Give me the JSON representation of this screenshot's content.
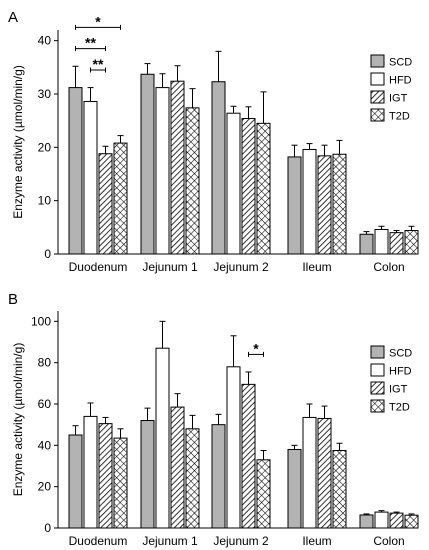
{
  "chart_data": [
    {
      "type": "bar",
      "panel_label": "A",
      "ylabel": "Enzyme activity (µmol/min/g)",
      "ylim": [
        0,
        42
      ],
      "yticks": [
        0,
        10,
        20,
        30,
        40
      ],
      "categories": [
        "Duodenum",
        "Jejunum 1",
        "Jejunum 2",
        "Ileum",
        "Colon"
      ],
      "series": [
        {
          "name": "SCD",
          "values": [
            31.2,
            33.7,
            32.3,
            18.2,
            3.7
          ],
          "errors": [
            4.0,
            2.0,
            5.7,
            2.2,
            0.5
          ]
        },
        {
          "name": "HFD",
          "values": [
            28.6,
            31.2,
            26.4,
            19.6,
            4.6
          ],
          "errors": [
            2.6,
            2.6,
            1.3,
            1.1,
            0.6
          ]
        },
        {
          "name": "IGT",
          "values": [
            18.8,
            32.4,
            25.4,
            18.4,
            4.0
          ],
          "errors": [
            1.4,
            2.9,
            2.2,
            2.0,
            0.4
          ]
        },
        {
          "name": "T2D",
          "values": [
            20.8,
            27.4,
            24.5,
            18.7,
            4.4
          ],
          "errors": [
            1.4,
            3.6,
            5.9,
            2.6,
            0.8
          ]
        }
      ],
      "annotations": [
        {
          "text": "*",
          "category": "Duodenum",
          "from": "SCD",
          "to": "T2D",
          "level": 42.5
        },
        {
          "text": "**",
          "category": "Duodenum",
          "from": "SCD",
          "to": "IGT",
          "level": 38.5
        },
        {
          "text": "**",
          "category": "Duodenum",
          "from": "HFD",
          "to": "IGT",
          "level": 34.5
        }
      ],
      "legend": "top-right"
    },
    {
      "type": "bar",
      "panel_label": "B",
      "ylabel": "Enzyme activity (µmol/min/g)",
      "ylim": [
        0,
        105
      ],
      "yticks": [
        0,
        20,
        40,
        60,
        80,
        100
      ],
      "categories": [
        "Duodenum",
        "Jejunum 1",
        "Jejunum 2",
        "Ileum",
        "Colon"
      ],
      "series": [
        {
          "name": "SCD",
          "values": [
            45,
            52,
            50,
            38,
            6.3
          ],
          "errors": [
            4.5,
            6,
            5,
            2,
            0.5
          ]
        },
        {
          "name": "HFD",
          "values": [
            54,
            87,
            78,
            53.5,
            7.7
          ],
          "errors": [
            6.5,
            13,
            15,
            6.5,
            0.7
          ]
        },
        {
          "name": "IGT",
          "values": [
            50.5,
            58.5,
            69.5,
            53,
            7.2
          ],
          "errors": [
            3,
            6.5,
            6,
            6,
            0.5
          ]
        },
        {
          "name": "T2D",
          "values": [
            43.5,
            48,
            33,
            37.5,
            6.2
          ],
          "errors": [
            4.5,
            6.5,
            4.5,
            3.5,
            0.6
          ]
        }
      ],
      "annotations": [
        {
          "text": "*",
          "category": "Jejunum 2",
          "from": "IGT",
          "to": "T2D",
          "level": 84
        }
      ],
      "legend": "top-right"
    }
  ],
  "colors": {
    "SCD": "#b3b3b3",
    "HFD": "#ffffff",
    "IGT": "#ffffff",
    "T2D": "#ffffff",
    "axis": "#000000"
  },
  "patterns": {
    "SCD": "solid",
    "HFD": "solid",
    "IGT": "diagonal-hatch",
    "T2D": "crosshatch"
  }
}
